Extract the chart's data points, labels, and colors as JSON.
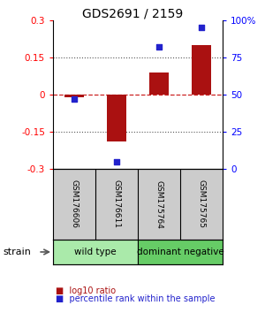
{
  "title": "GDS2691 / 2159",
  "samples": [
    "GSM176606",
    "GSM176611",
    "GSM175764",
    "GSM175765"
  ],
  "log10_ratio": [
    -0.01,
    -0.19,
    0.09,
    0.2
  ],
  "percentile_rank": [
    47,
    5,
    82,
    95
  ],
  "ylim_left": [
    -0.3,
    0.3
  ],
  "ylim_right": [
    0,
    100
  ],
  "bar_color": "#aa1111",
  "dot_color": "#2222cc",
  "hline_zero_color": "#cc2222",
  "hline_015_color": "#555555",
  "label_bg_color": "#cccccc",
  "strain_groups": [
    {
      "label": "wild type",
      "indices": [
        0,
        1
      ],
      "color": "#aaeaaa"
    },
    {
      "label": "dominant negative",
      "indices": [
        2,
        3
      ],
      "color": "#66cc66"
    }
  ],
  "strain_label": "strain",
  "legend_bar_label": "log10 ratio",
  "legend_dot_label": "percentile rank within the sample",
  "title_fontsize": 10,
  "tick_fontsize": 7.5,
  "sample_fontsize": 6.5,
  "strain_fontsize": 7.5,
  "legend_fontsize": 7
}
